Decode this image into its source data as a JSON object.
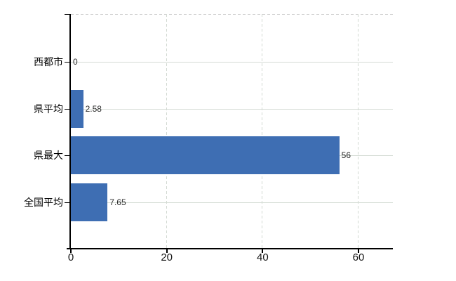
{
  "chart_data": {
    "type": "bar",
    "orientation": "horizontal",
    "title": "",
    "xlabel": "",
    "ylabel": "",
    "categories": [
      "西都市",
      "県平均",
      "県最大",
      "全国平均"
    ],
    "values": [
      0,
      2.58,
      56,
      7.65
    ],
    "value_labels": [
      "0",
      "2.58",
      "56",
      "7.65"
    ],
    "xticks": [
      0,
      20,
      40,
      60
    ],
    "xtick_labels": [
      "0",
      "20",
      "40",
      "60"
    ],
    "xlim": [
      0,
      67.2
    ],
    "grid": "on",
    "legend": "none",
    "colors": {
      "bar": "#3e6eb3",
      "axis": "#000000",
      "hgrid": "#d5dcd5",
      "vgrid": "#d2d9d2",
      "top_border": "#cfcfcf",
      "value_text": "#2b2b2b",
      "label_text": "#000000",
      "background": "#ffffff"
    }
  }
}
